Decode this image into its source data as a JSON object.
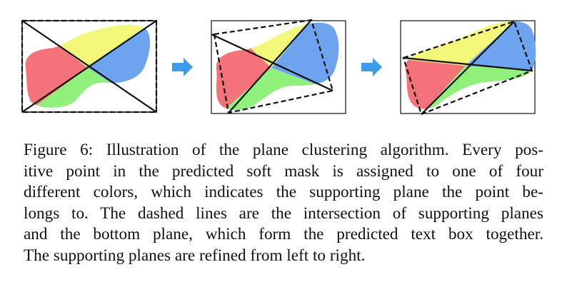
{
  "figure": {
    "colors": {
      "red": "#f4737a",
      "yellow": "#f3f77a",
      "blue": "#6ea4ef",
      "green": "#8ff07b",
      "arrow": "#3d9be9",
      "line": "#111111"
    },
    "caption_lines": [
      "Figure 6: Illustration of the plane clustering algorithm. Every pos-",
      "itive point in the predicted soft mask is assigned to one of four",
      "different colors, which indicates the supporting plane the point be-",
      "longs to. The dashed lines are the intersection of supporting planes",
      "and the bottom plane, which form the predicted text box together.",
      "The supporting planes are refined from left to right."
    ]
  }
}
